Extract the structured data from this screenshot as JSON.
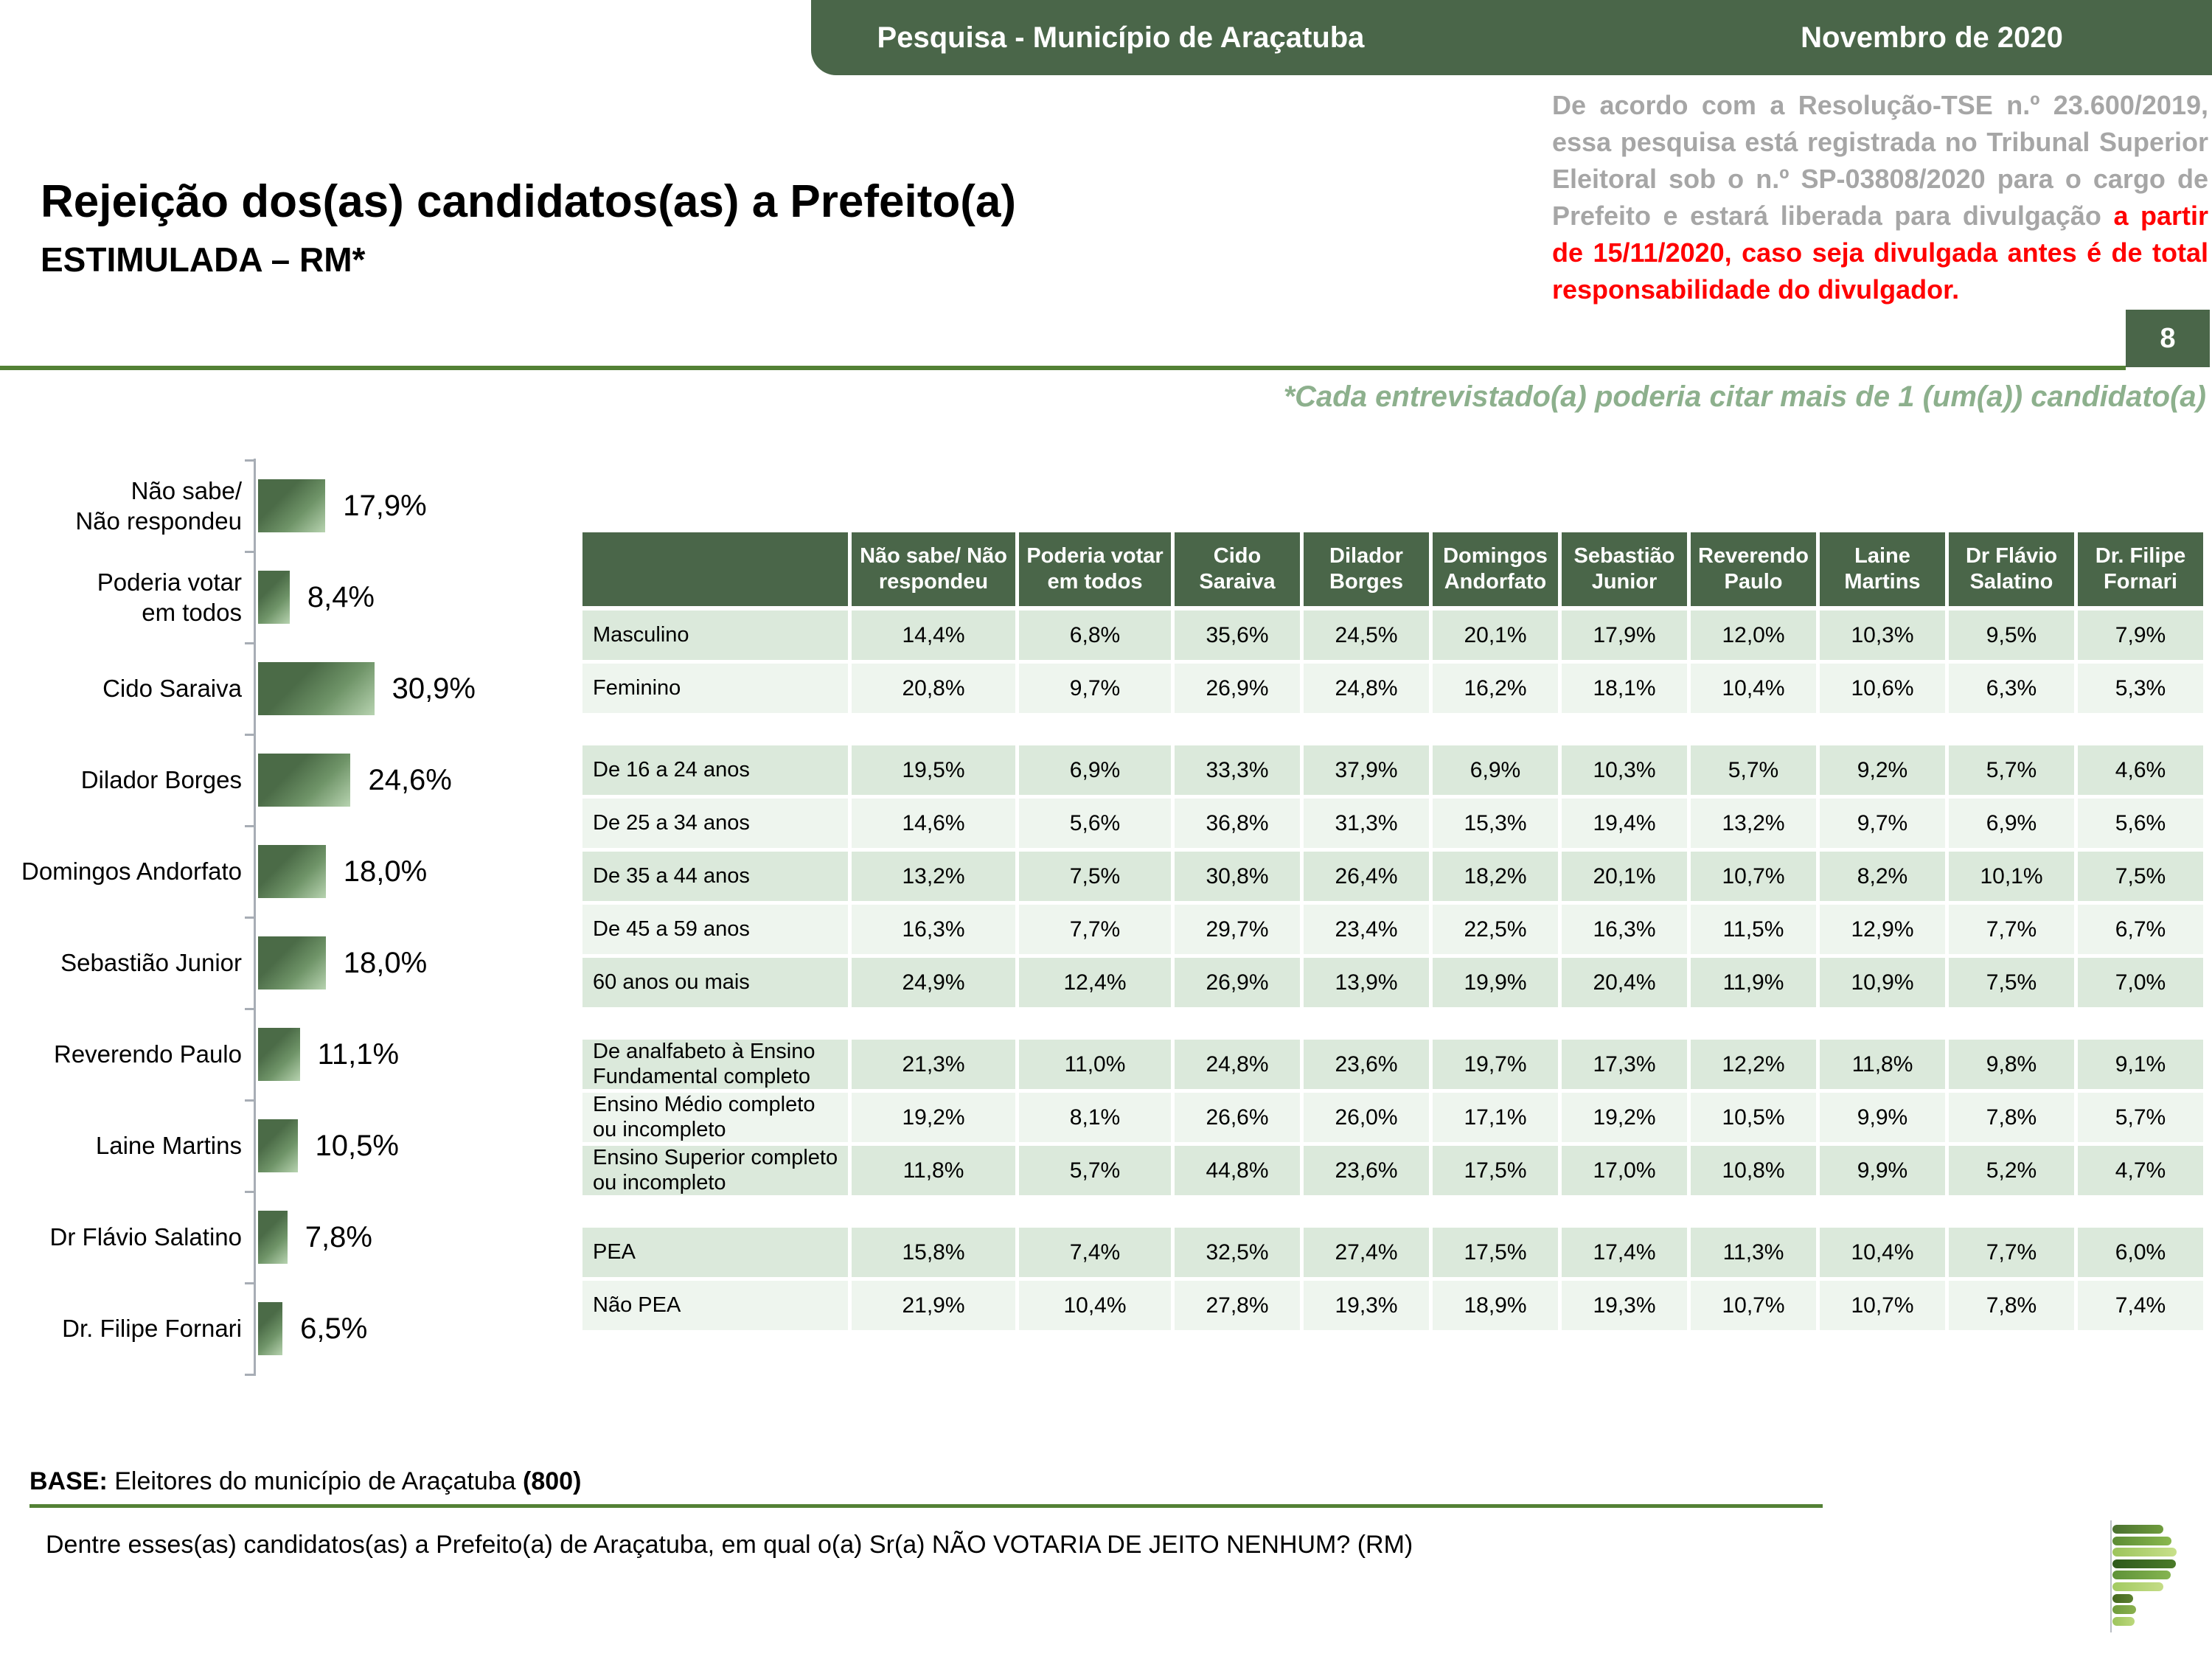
{
  "banner": {
    "title": "Pesquisa - Município de Araçatuba",
    "date": "Novembro de 2020"
  },
  "page_number": "8",
  "disclaimer": {
    "gray": "De acordo com a Resolução-TSE n.º 23.600/2019, essa pesquisa está registrada no Tribunal Superior Eleitoral sob o n.º SP-03808/2020 para o cargo de Prefeito e estará liberada para divulgação ",
    "red": "a partir de 15/11/2020, caso seja divulgada antes é de total responsabilidade do divulgador."
  },
  "title": {
    "main": "Rejeição dos(as) candidatos(as) a Prefeito(a)",
    "sub": "ESTIMULADA – RM*"
  },
  "note": "*Cada entrevistado(a) poderia citar mais de 1 (um(a)) candidato(a)",
  "chart_data": {
    "type": "bar",
    "orientation": "horizontal",
    "title": "Rejeição dos(as) candidatos(as) a Prefeito(a) - ESTIMULADA - RM",
    "categories": [
      "Não sabe/\nNão respondeu",
      "Poderia votar\nem todos",
      "Cido Saraiva",
      "Dilador Borges",
      "Domingos Andorfato",
      "Sebastião Junior",
      "Reverendo Paulo",
      "Laine Martins",
      "Dr Flávio Salatino",
      "Dr. Filipe Fornari"
    ],
    "values": [
      17.9,
      8.4,
      30.9,
      24.6,
      18.0,
      18.0,
      11.1,
      10.5,
      7.8,
      6.5
    ],
    "labels": [
      "17,9%",
      "8,4%",
      "30,9%",
      "24,6%",
      "18,0%",
      "18,0%",
      "11,1%",
      "10,5%",
      "7,8%",
      "6,5%"
    ],
    "xlim": [
      0,
      35
    ],
    "bar_color_dark": "#4b6b47",
    "bar_color_light": "#b7d3b0"
  },
  "table": {
    "columns": [
      "",
      "Não sabe/ Não respondeu",
      "Poderia votar em todos",
      "Cido Saraiva",
      "Dilador Borges",
      "Domingos Andorfato",
      "Sebastião Junior",
      "Reverendo Paulo",
      "Laine Martins",
      "Dr Flávio Salatino",
      "Dr. Filipe Fornari"
    ],
    "groups": [
      {
        "rows": [
          {
            "label": "Masculino",
            "values": [
              "14,4%",
              "6,8%",
              "35,6%",
              "24,5%",
              "20,1%",
              "17,9%",
              "12,0%",
              "10,3%",
              "9,5%",
              "7,9%"
            ]
          },
          {
            "label": "Feminino",
            "values": [
              "20,8%",
              "9,7%",
              "26,9%",
              "24,8%",
              "16,2%",
              "18,1%",
              "10,4%",
              "10,6%",
              "6,3%",
              "5,3%"
            ]
          }
        ]
      },
      {
        "rows": [
          {
            "label": "De 16 a 24 anos",
            "values": [
              "19,5%",
              "6,9%",
              "33,3%",
              "37,9%",
              "6,9%",
              "10,3%",
              "5,7%",
              "9,2%",
              "5,7%",
              "4,6%"
            ]
          },
          {
            "label": "De 25 a 34 anos",
            "values": [
              "14,6%",
              "5,6%",
              "36,8%",
              "31,3%",
              "15,3%",
              "19,4%",
              "13,2%",
              "9,7%",
              "6,9%",
              "5,6%"
            ]
          },
          {
            "label": "De 35 a 44 anos",
            "values": [
              "13,2%",
              "7,5%",
              "30,8%",
              "26,4%",
              "18,2%",
              "20,1%",
              "10,7%",
              "8,2%",
              "10,1%",
              "7,5%"
            ]
          },
          {
            "label": "De 45 a 59 anos",
            "values": [
              "16,3%",
              "7,7%",
              "29,7%",
              "23,4%",
              "22,5%",
              "16,3%",
              "11,5%",
              "12,9%",
              "7,7%",
              "6,7%"
            ]
          },
          {
            "label": "60 anos ou mais",
            "values": [
              "24,9%",
              "12,4%",
              "26,9%",
              "13,9%",
              "19,9%",
              "20,4%",
              "11,9%",
              "10,9%",
              "7,5%",
              "7,0%"
            ]
          }
        ]
      },
      {
        "rows": [
          {
            "label": "De analfabeto à Ensino Fundamental completo",
            "values": [
              "21,3%",
              "11,0%",
              "24,8%",
              "23,6%",
              "19,7%",
              "17,3%",
              "12,2%",
              "11,8%",
              "9,8%",
              "9,1%"
            ]
          },
          {
            "label": "Ensino Médio completo ou incompleto",
            "values": [
              "19,2%",
              "8,1%",
              "26,6%",
              "26,0%",
              "17,1%",
              "19,2%",
              "10,5%",
              "9,9%",
              "7,8%",
              "5,7%"
            ]
          },
          {
            "label": "Ensino Superior completo ou incompleto",
            "values": [
              "11,8%",
              "5,7%",
              "44,8%",
              "23,6%",
              "17,5%",
              "17,0%",
              "10,8%",
              "9,9%",
              "5,2%",
              "4,7%"
            ]
          }
        ]
      },
      {
        "rows": [
          {
            "label": "PEA",
            "values": [
              "15,8%",
              "7,4%",
              "32,5%",
              "27,4%",
              "17,5%",
              "17,4%",
              "11,3%",
              "10,4%",
              "7,7%",
              "6,0%"
            ]
          },
          {
            "label": "Não PEA",
            "values": [
              "21,9%",
              "10,4%",
              "27,8%",
              "19,3%",
              "18,9%",
              "19,3%",
              "10,7%",
              "10,7%",
              "7,8%",
              "7,4%"
            ]
          }
        ]
      }
    ]
  },
  "footer": {
    "base_label": "BASE:",
    "base_text": " Eleitores do município de Araçatuba ",
    "base_count": "(800)",
    "question": "Dentre esses(as) candidatos(as) a Prefeito(a) de Araçatuba, em qual o(a) Sr(a) NÃO VOTARIA DE JEITO NENHUM? (RM)"
  },
  "logo_bars": [
    {
      "w": 69,
      "c1": "#4a7030",
      "c2": "#6f9c3d"
    },
    {
      "w": 80,
      "c1": "#5c8c34",
      "c2": "#8ab84e"
    },
    {
      "w": 87,
      "c1": "#9cc45c",
      "c2": "#c8e08a"
    },
    {
      "w": 86,
      "c1": "#2f5a1c",
      "c2": "#4a7a28"
    },
    {
      "w": 79,
      "c1": "#5f9238",
      "c2": "#85b450"
    },
    {
      "w": 69,
      "c1": "#a2ca62",
      "c2": "#c4dc86"
    },
    {
      "w": 28,
      "c1": "#44671f",
      "c2": "#5c8030"
    },
    {
      "w": 32,
      "c1": "#6f9c3d",
      "c2": "#8ab04e"
    },
    {
      "w": 30,
      "c1": "#9cc45c",
      "c2": "#bcd87c"
    }
  ],
  "colors": {
    "header_green": "#4a6649",
    "line_green": "#538135",
    "note_green": "#8db08d",
    "disclaimer_gray": "#a6a6a6",
    "disclaimer_red": "#ff0000",
    "row_dark": "#dbe9db",
    "row_light": "#eef5ee"
  }
}
